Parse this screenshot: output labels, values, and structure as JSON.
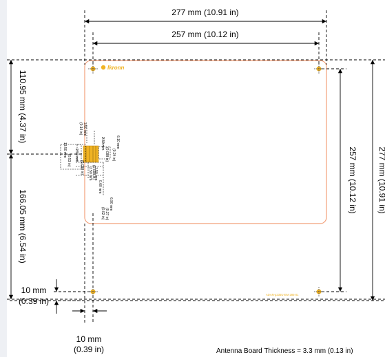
{
  "dimensions": {
    "outer_width": "277 mm  (10.91 in)",
    "inner_width": "257 mm  (10.12 in)",
    "outer_height": "277 mm  (10.91 in)",
    "inner_height": "257 mm  (10.12 in)",
    "top_to_feed": "110.95 mm  (4.37 in)",
    "feed_to_bottom": "166.05 mm  (6.54 in)",
    "hole_offset_v_mm": "10 mm",
    "hole_offset_v_in": "(0.39 in)",
    "hole_offset_h_mm": "10 mm",
    "hole_offset_h_in": "(0.39 in)"
  },
  "feed_detail": {
    "a": "3.50 mm",
    "a_in": "(0.14 in)",
    "b": "2.50 mm",
    "b_in": "(0.098 in)",
    "c": "6.10 mm",
    "c_in": "(0.24 in)",
    "d": "2.50 mm",
    "d_in": "(0.098 in)",
    "e": "13.50 mm",
    "e_in": "(0.53 in)",
    "f": "2.50 mm",
    "f_in": "(0.098 in)",
    "g": "6.90 mm",
    "g_in": "(0.27 in)",
    "h": "0.60 mm",
    "h_in": "(0.02 in)",
    "i": "1.50 mm"
  },
  "board": {
    "logo_text": "Ikronn",
    "part_label": "ADAN-g235U-EM-285-01"
  },
  "note": "Antenna Board Thickness = 3.3 mm  (0.13 in)",
  "colors": {
    "board_outline": "#f2a07a",
    "hole_fill": "#f0b323",
    "label": "#f0b323"
  }
}
